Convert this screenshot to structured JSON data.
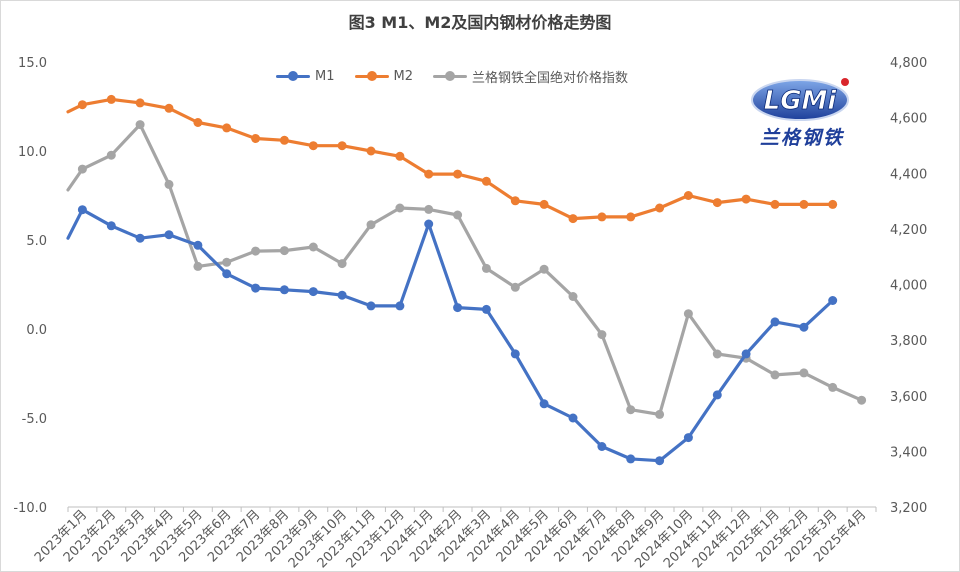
{
  "chart_data": {
    "type": "line",
    "title": "图3 M1、M2及国内钢材价格走势图",
    "categories": [
      "2023年1月",
      "2023年2月",
      "2023年3月",
      "2023年4月",
      "2023年5月",
      "2023年6月",
      "2023年7月",
      "2023年8月",
      "2023年9月",
      "2023年10月",
      "2023年11月",
      "2023年12月",
      "2024年1月",
      "2024年2月",
      "2024年3月",
      "2024年4月",
      "2024年5月",
      "2024年6月",
      "2024年7月",
      "2024年8月",
      "2024年9月",
      "2024年10月",
      "2024年11月",
      "2024年12月",
      "2025年1月",
      "2025年2月",
      "2025年3月",
      "2025年4月"
    ],
    "left_axis": {
      "min": -10,
      "max": 15,
      "step": 5,
      "tick_labels": [
        "-10.0",
        "-5.0",
        "0.0",
        "5.0",
        "10.0",
        "15.0"
      ]
    },
    "right_axis": {
      "min": 3200,
      "max": 4800,
      "step": 200,
      "tick_labels": [
        "3,200",
        "3,400",
        "3,600",
        "3,800",
        "4,000",
        "4,200",
        "4,400",
        "4,600",
        "4,800"
      ]
    },
    "grid": false,
    "legend_position": "top",
    "series": [
      {
        "name": "M1",
        "axis": "left",
        "color": "#4472C4",
        "values": [
          6.7,
          5.8,
          5.1,
          5.3,
          4.7,
          3.1,
          2.3,
          2.2,
          2.1,
          1.9,
          1.3,
          1.3,
          5.9,
          1.2,
          1.1,
          -1.4,
          -4.2,
          -5.0,
          -6.6,
          -7.3,
          -7.4,
          -6.1,
          -3.7,
          -1.4,
          0.4,
          0.1,
          1.6,
          null
        ],
        "leading_value": 5.1
      },
      {
        "name": "M2",
        "axis": "left",
        "color": "#ED7D31",
        "values": [
          12.6,
          12.9,
          12.7,
          12.4,
          11.6,
          11.3,
          10.7,
          10.6,
          10.3,
          10.3,
          10.0,
          9.7,
          8.7,
          8.7,
          8.3,
          7.2,
          7.0,
          6.2,
          6.3,
          6.3,
          6.8,
          7.5,
          7.1,
          7.3,
          7.0,
          7.0,
          7.0,
          null
        ],
        "leading_value": 12.2
      },
      {
        "name": "兰格钢铁全国绝对价格指数",
        "axis": "right",
        "color": "#A5A5A5",
        "values": [
          4415,
          4465,
          4575,
          4360,
          4065,
          4080,
          4120,
          4122,
          4135,
          4075,
          4215,
          4275,
          4270,
          4250,
          4058,
          3990,
          4055,
          3957,
          3820,
          3550,
          3533,
          3895,
          3750,
          3735,
          3675,
          3682,
          3630,
          3584
        ],
        "leading_value": 4340
      }
    ]
  },
  "logo": {
    "wordmark": "LGMi",
    "tagline": "兰格钢铁"
  }
}
